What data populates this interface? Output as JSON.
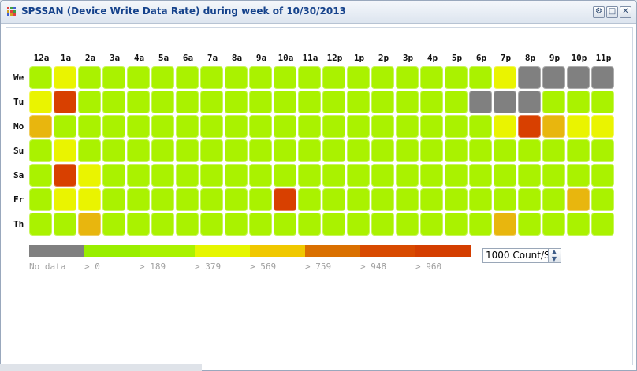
{
  "window": {
    "title": "SPSSAN (Device Write Data Rate) during week of 10/30/2013",
    "buttons": [
      "gear-icon",
      "maximize-icon",
      "close-icon"
    ]
  },
  "heatmap": {
    "hours": [
      "12a",
      "1a",
      "2a",
      "3a",
      "4a",
      "5a",
      "6a",
      "7a",
      "8a",
      "9a",
      "10a",
      "11a",
      "12p",
      "1p",
      "2p",
      "3p",
      "4p",
      "5p",
      "6p",
      "7p",
      "8p",
      "9p",
      "10p",
      "11p"
    ],
    "days": [
      "We",
      "Tu",
      "Mo",
      "Su",
      "Sa",
      "Fr",
      "Th"
    ],
    "levels": {
      "We": [
        "L",
        "Y",
        "L",
        "L",
        "L",
        "L",
        "L",
        "L",
        "L",
        "L",
        "L",
        "L",
        "L",
        "L",
        "L",
        "L",
        "L",
        "L",
        "L",
        "Y",
        "N",
        "N",
        "N",
        "N"
      ],
      "Tu": [
        "Y",
        "R",
        "L",
        "L",
        "L",
        "L",
        "L",
        "L",
        "L",
        "L",
        "L",
        "L",
        "L",
        "L",
        "L",
        "L",
        "L",
        "L",
        "N",
        "N",
        "N",
        "L",
        "L",
        "L"
      ],
      "Mo": [
        "O",
        "L",
        "L",
        "L",
        "L",
        "L",
        "L",
        "L",
        "L",
        "L",
        "L",
        "L",
        "L",
        "L",
        "L",
        "L",
        "L",
        "L",
        "L",
        "Y",
        "R",
        "O",
        "Y",
        "Y"
      ],
      "Su": [
        "L",
        "Y",
        "L",
        "L",
        "L",
        "L",
        "L",
        "L",
        "L",
        "L",
        "L",
        "L",
        "L",
        "L",
        "L",
        "L",
        "L",
        "L",
        "L",
        "L",
        "L",
        "L",
        "L",
        "L"
      ],
      "Sa": [
        "L",
        "R",
        "Y",
        "L",
        "L",
        "L",
        "L",
        "L",
        "L",
        "L",
        "L",
        "L",
        "L",
        "L",
        "L",
        "L",
        "L",
        "L",
        "L",
        "L",
        "L",
        "L",
        "L",
        "L"
      ],
      "Fr": [
        "L",
        "Y",
        "Y",
        "L",
        "L",
        "L",
        "L",
        "L",
        "L",
        "L",
        "R",
        "L",
        "L",
        "L",
        "L",
        "L",
        "L",
        "L",
        "L",
        "L",
        "L",
        "L",
        "O",
        "L"
      ],
      "Th": [
        "L",
        "L",
        "O",
        "L",
        "L",
        "L",
        "L",
        "L",
        "L",
        "L",
        "L",
        "L",
        "L",
        "L",
        "L",
        "L",
        "L",
        "L",
        "L",
        "O",
        "L",
        "L",
        "L",
        "L"
      ]
    },
    "level_colors": {
      "N": "#808080",
      "L": "#aaf200",
      "Y": "#eaf400",
      "O": "#e8b60e",
      "R": "#d84000"
    }
  },
  "legend": {
    "items": [
      {
        "label": "No data",
        "color": "#808080"
      },
      {
        "label": "> 0",
        "color": "#99ee00"
      },
      {
        "label": "> 189",
        "color": "#aaf200"
      },
      {
        "label": "> 379",
        "color": "#e6f600"
      },
      {
        "label": "> 569",
        "color": "#f0c800"
      },
      {
        "label": "> 759",
        "color": "#da7000"
      },
      {
        "label": "> 948",
        "color": "#d84a00"
      },
      {
        "label": "> 960",
        "color": "#d43e00"
      }
    ],
    "unit_value": "1000 Count/S"
  }
}
